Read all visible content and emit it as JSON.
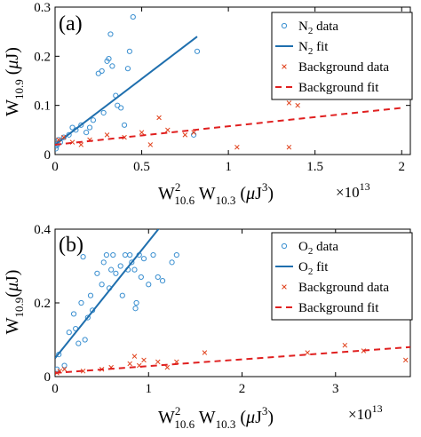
{
  "colors": {
    "n2_data": "#3a8fd0",
    "n2_fit": "#1f6fae",
    "background_data": "#e0401a",
    "background_fit": "#e02020",
    "axis": "#000000"
  },
  "chart_data": [
    {
      "type": "scatter",
      "panel_label": "(a)",
      "xlabel_parts": {
        "main": "W",
        "sup": "2",
        "sub1": "10.6",
        "mid": " W",
        "sub2": "10.3",
        "unit_open": " (",
        "mu": "μ",
        "unit_main": "J",
        "unit_sup": "3",
        "unit_close": ")"
      },
      "ylabel_parts": {
        "main": "W",
        "sub": "10.9",
        "unit_open": " (",
        "mu": "μ",
        "unit_main": "J",
        "unit_close": ")"
      },
      "x_multiplier": {
        "base": "×10",
        "exp": "13"
      },
      "xlim": [
        0,
        2.05
      ],
      "ylim": [
        0,
        0.3
      ],
      "x_ticks": [
        0,
        0.5,
        1,
        1.5,
        2
      ],
      "x_tick_labels": [
        "0",
        "0.5",
        "1",
        "1.5",
        "2"
      ],
      "y_ticks": [
        0,
        0.1,
        0.2,
        0.3
      ],
      "y_tick_labels": [
        "0",
        "0.1",
        "0.2",
        "0.3"
      ],
      "legend": {
        "position": "top-right",
        "entries": [
          {
            "main": "N",
            "sub": "2",
            "rest": " data"
          },
          {
            "main": "N",
            "sub": "2",
            "rest": " fit"
          },
          {
            "main": "Background data",
            "sub": "",
            "rest": ""
          },
          {
            "main": "Background fit",
            "sub": "",
            "rest": ""
          }
        ]
      },
      "series": [
        {
          "kind": "circle-markers",
          "points": [
            [
              0.005,
              0.012
            ],
            [
              0.01,
              0.018
            ],
            [
              0.015,
              0.022
            ],
            [
              0.02,
              0.03
            ],
            [
              0.03,
              0.025
            ],
            [
              0.05,
              0.035
            ],
            [
              0.08,
              0.04
            ],
            [
              0.1,
              0.055
            ],
            [
              0.12,
              0.05
            ],
            [
              0.15,
              0.06
            ],
            [
              0.18,
              0.045
            ],
            [
              0.2,
              0.055
            ],
            [
              0.22,
              0.07
            ],
            [
              0.25,
              0.165
            ],
            [
              0.27,
              0.17
            ],
            [
              0.28,
              0.085
            ],
            [
              0.3,
              0.19
            ],
            [
              0.31,
              0.195
            ],
            [
              0.32,
              0.245
            ],
            [
              0.33,
              0.18
            ],
            [
              0.35,
              0.12
            ],
            [
              0.36,
              0.1
            ],
            [
              0.38,
              0.095
            ],
            [
              0.4,
              0.06
            ],
            [
              0.42,
              0.175
            ],
            [
              0.43,
              0.21
            ],
            [
              0.45,
              0.28
            ],
            [
              0.8,
              0.04
            ],
            [
              0.82,
              0.21
            ]
          ]
        },
        {
          "kind": "solid-line",
          "points": [
            [
              0,
              0.02
            ],
            [
              0.82,
              0.24
            ]
          ]
        },
        {
          "kind": "x-markers",
          "points": [
            [
              0.02,
              0.03
            ],
            [
              0.05,
              0.035
            ],
            [
              0.1,
              0.025
            ],
            [
              0.15,
              0.02
            ],
            [
              0.2,
              0.03
            ],
            [
              0.3,
              0.04
            ],
            [
              0.4,
              0.035
            ],
            [
              0.5,
              0.045
            ],
            [
              0.55,
              0.02
            ],
            [
              0.6,
              0.075
            ],
            [
              0.65,
              0.05
            ],
            [
              0.75,
              0.04
            ],
            [
              0.8,
              0.045
            ],
            [
              1.05,
              0.015
            ],
            [
              1.35,
              0.105
            ],
            [
              1.35,
              0.015
            ],
            [
              1.4,
              0.1
            ]
          ]
        },
        {
          "kind": "dashed-line",
          "points": [
            [
              0,
              0.02
            ],
            [
              2.0,
              0.095
            ]
          ]
        }
      ]
    },
    {
      "type": "scatter",
      "panel_label": "(b)",
      "xlabel_parts": {
        "main": "W",
        "sup": "2",
        "sub1": "10.6",
        "mid": " W",
        "sub2": "10.3",
        "unit_open": " (",
        "mu": "μ",
        "unit_main": "J",
        "unit_sup": "3",
        "unit_close": ")"
      },
      "ylabel_parts": {
        "main": "W",
        "sub": "10.9",
        "unit_open": "(",
        "mu": "μ",
        "unit_main": "J",
        "unit_close": ")"
      },
      "x_multiplier": {
        "base": "×10",
        "exp": "13"
      },
      "xlim": [
        0,
        3.8
      ],
      "ylim": [
        0,
        0.4
      ],
      "x_ticks": [
        0,
        1,
        2,
        3
      ],
      "x_tick_labels": [
        "0",
        "1",
        "2",
        "3"
      ],
      "y_ticks": [
        0,
        0.2,
        0.4
      ],
      "y_tick_labels": [
        "0",
        "0.2",
        "0.4"
      ],
      "legend": {
        "position": "top-right",
        "entries": [
          {
            "main": "O",
            "sub": "2",
            "rest": " data"
          },
          {
            "main": "O",
            "sub": "2",
            "rest": "  fit"
          },
          {
            "main": "Background data",
            "sub": "",
            "rest": ""
          },
          {
            "main": "Background fit",
            "sub": "",
            "rest": ""
          }
        ]
      },
      "series": [
        {
          "kind": "circle-markers",
          "points": [
            [
              0.02,
              0.02
            ],
            [
              0.04,
              0.06
            ],
            [
              0.1,
              0.03
            ],
            [
              0.15,
              0.12
            ],
            [
              0.2,
              0.17
            ],
            [
              0.22,
              0.13
            ],
            [
              0.25,
              0.09
            ],
            [
              0.28,
              0.2
            ],
            [
              0.3,
              0.325
            ],
            [
              0.32,
              0.1
            ],
            [
              0.35,
              0.16
            ],
            [
              0.38,
              0.22
            ],
            [
              0.4,
              0.18
            ],
            [
              0.45,
              0.28
            ],
            [
              0.5,
              0.25
            ],
            [
              0.52,
              0.31
            ],
            [
              0.55,
              0.33
            ],
            [
              0.58,
              0.24
            ],
            [
              0.6,
              0.29
            ],
            [
              0.62,
              0.33
            ],
            [
              0.65,
              0.28
            ],
            [
              0.7,
              0.3
            ],
            [
              0.72,
              0.22
            ],
            [
              0.75,
              0.33
            ],
            [
              0.78,
              0.29
            ],
            [
              0.8,
              0.33
            ],
            [
              0.82,
              0.31
            ],
            [
              0.85,
              0.29
            ],
            [
              0.87,
              0.2
            ],
            [
              0.9,
              0.33
            ],
            [
              0.92,
              0.27
            ],
            [
              0.95,
              0.32
            ],
            [
              1.0,
              0.25
            ],
            [
              1.05,
              0.33
            ],
            [
              1.1,
              0.27
            ],
            [
              1.15,
              0.26
            ],
            [
              1.3,
              0.33
            ],
            [
              1.25,
              0.31
            ],
            [
              0.86,
              0.185
            ]
          ]
        },
        {
          "kind": "solid-line",
          "points": [
            [
              0,
              0.05
            ],
            [
              1.2,
              0.43
            ]
          ]
        },
        {
          "kind": "x-markers",
          "points": [
            [
              0.02,
              0.01
            ],
            [
              0.05,
              0.015
            ],
            [
              0.1,
              0.02
            ],
            [
              0.3,
              0.015
            ],
            [
              0.5,
              0.02
            ],
            [
              0.6,
              0.025
            ],
            [
              0.8,
              0.035
            ],
            [
              0.85,
              0.055
            ],
            [
              0.9,
              0.03
            ],
            [
              0.95,
              0.045
            ],
            [
              1.1,
              0.04
            ],
            [
              1.2,
              0.025
            ],
            [
              1.3,
              0.04
            ],
            [
              1.6,
              0.065
            ],
            [
              2.7,
              0.065
            ],
            [
              3.1,
              0.085
            ],
            [
              3.3,
              0.07
            ],
            [
              3.75,
              0.045
            ]
          ]
        },
        {
          "kind": "dashed-line",
          "points": [
            [
              0,
              0.01
            ],
            [
              3.8,
              0.08
            ]
          ]
        }
      ]
    }
  ]
}
